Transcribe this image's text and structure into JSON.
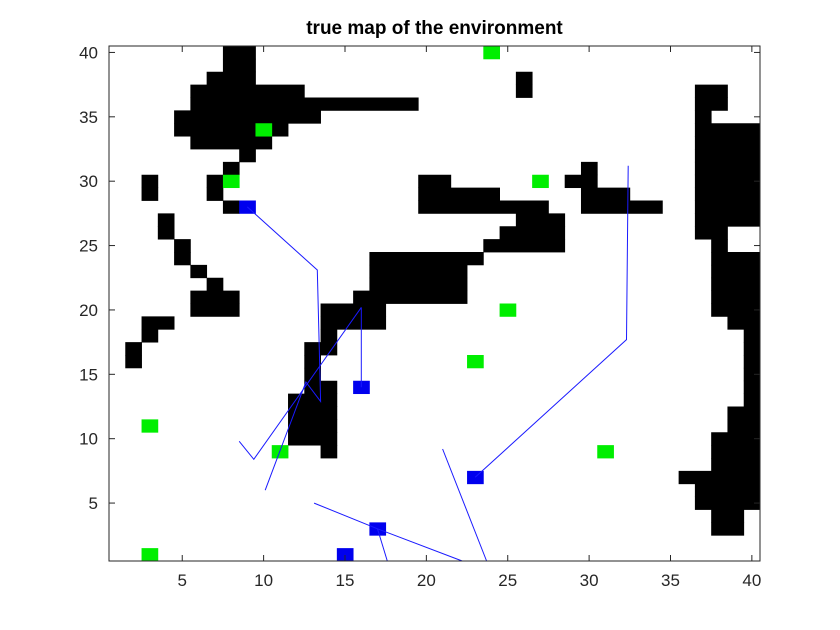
{
  "chart_data": {
    "type": "heatmap",
    "title": "true map of the environment",
    "xlabel": "",
    "ylabel": "",
    "xlim": [
      0.5,
      40.5
    ],
    "ylim": [
      0.5,
      40.5
    ],
    "x_ticks": [
      5,
      10,
      15,
      20,
      25,
      30,
      35,
      40
    ],
    "y_ticks": [
      5,
      10,
      15,
      20,
      25,
      30,
      35,
      40
    ],
    "grid": false,
    "colors": {
      "obstacle": "#000000",
      "free": "#ffffff",
      "green": "#00ee00",
      "blue": "#0000ee",
      "path": "#1a1aff"
    },
    "obstacles": [
      [
        40,
        8,
        9
      ],
      [
        39,
        8,
        9
      ],
      [
        38,
        7,
        9
      ],
      [
        38,
        26,
        26
      ],
      [
        37,
        6,
        12
      ],
      [
        37,
        26,
        26
      ],
      [
        37,
        37,
        38
      ],
      [
        36,
        6,
        19
      ],
      [
        36,
        37,
        38
      ],
      [
        35,
        5,
        13
      ],
      [
        35,
        37,
        37
      ],
      [
        34,
        5,
        11
      ],
      [
        34,
        37,
        40
      ],
      [
        33,
        6,
        10
      ],
      [
        33,
        37,
        40
      ],
      [
        32,
        9,
        9
      ],
      [
        32,
        37,
        40
      ],
      [
        31,
        8,
        8
      ],
      [
        31,
        30,
        30
      ],
      [
        31,
        37,
        40
      ],
      [
        30,
        3,
        3
      ],
      [
        30,
        7,
        7
      ],
      [
        30,
        20,
        21
      ],
      [
        30,
        29,
        30
      ],
      [
        30,
        37,
        40
      ],
      [
        29,
        3,
        3
      ],
      [
        29,
        7,
        7
      ],
      [
        29,
        20,
        24
      ],
      [
        29,
        30,
        32
      ],
      [
        29,
        37,
        40
      ],
      [
        28,
        8,
        8
      ],
      [
        28,
        20,
        27
      ],
      [
        28,
        30,
        34
      ],
      [
        28,
        37,
        40
      ],
      [
        27,
        4,
        4
      ],
      [
        27,
        26,
        28
      ],
      [
        27,
        37,
        40
      ],
      [
        26,
        4,
        4
      ],
      [
        26,
        25,
        28
      ],
      [
        26,
        37,
        38
      ],
      [
        25,
        5,
        5
      ],
      [
        25,
        24,
        28
      ],
      [
        25,
        38,
        38
      ],
      [
        24,
        5,
        5
      ],
      [
        24,
        17,
        23
      ],
      [
        24,
        38,
        40
      ],
      [
        23,
        6,
        6
      ],
      [
        23,
        17,
        22
      ],
      [
        23,
        38,
        40
      ],
      [
        22,
        7,
        7
      ],
      [
        22,
        17,
        22
      ],
      [
        22,
        38,
        40
      ],
      [
        21,
        6,
        8
      ],
      [
        21,
        16,
        22
      ],
      [
        21,
        38,
        40
      ],
      [
        20,
        6,
        8
      ],
      [
        20,
        14,
        17
      ],
      [
        20,
        38,
        40
      ],
      [
        19,
        3,
        4
      ],
      [
        19,
        14,
        17
      ],
      [
        19,
        39,
        40
      ],
      [
        18,
        3,
        3
      ],
      [
        18,
        14,
        14
      ],
      [
        18,
        40,
        40
      ],
      [
        17,
        2,
        2
      ],
      [
        17,
        13,
        14
      ],
      [
        17,
        40,
        40
      ],
      [
        16,
        2,
        2
      ],
      [
        16,
        13,
        13
      ],
      [
        16,
        40,
        40
      ],
      [
        15,
        13,
        13
      ],
      [
        15,
        40,
        40
      ],
      [
        14,
        13,
        14
      ],
      [
        14,
        40,
        40
      ],
      [
        13,
        12,
        14
      ],
      [
        13,
        40,
        40
      ],
      [
        12,
        12,
        14
      ],
      [
        12,
        39,
        40
      ],
      [
        11,
        12,
        14
      ],
      [
        11,
        39,
        40
      ],
      [
        10,
        12,
        14
      ],
      [
        10,
        38,
        40
      ],
      [
        9,
        14,
        14
      ],
      [
        9,
        38,
        40
      ],
      [
        8,
        38,
        40
      ],
      [
        7,
        36,
        40
      ],
      [
        6,
        37,
        40
      ],
      [
        5,
        37,
        40
      ],
      [
        4,
        38,
        39
      ],
      [
        3,
        38,
        39
      ]
    ],
    "green_cells": [
      [
        24,
        40
      ],
      [
        10,
        34
      ],
      [
        8,
        30
      ],
      [
        27,
        30
      ],
      [
        25,
        20
      ],
      [
        23,
        16
      ],
      [
        3,
        11
      ],
      [
        11,
        9
      ],
      [
        31,
        9
      ],
      [
        3,
        1
      ]
    ],
    "blue_cells": [
      [
        9,
        28
      ],
      [
        16,
        14
      ],
      [
        23,
        7
      ],
      [
        17,
        3
      ],
      [
        15,
        1
      ]
    ],
    "path_segments": [
      [
        [
          9,
          28
        ],
        [
          13.3,
          23.1
        ],
        [
          13.5,
          12.9
        ],
        [
          12.6,
          14.4
        ],
        [
          10.1,
          6.0
        ]
      ],
      [
        [
          16,
          20.2
        ],
        [
          16,
          14
        ]
      ],
      [
        [
          16,
          20.2
        ],
        [
          9.4,
          8.4
        ],
        [
          8.5,
          9.8
        ]
      ],
      [
        [
          23,
          7
        ],
        [
          32.3,
          17.7
        ],
        [
          32.4,
          31.2
        ]
      ],
      [
        [
          21,
          9.2
        ],
        [
          23.7,
          0.5
        ]
      ],
      [
        [
          13.1,
          5
        ],
        [
          17,
          3
        ],
        [
          22.2,
          0.5
        ]
      ],
      [
        [
          17,
          3
        ],
        [
          17.6,
          0.5
        ]
      ]
    ]
  }
}
